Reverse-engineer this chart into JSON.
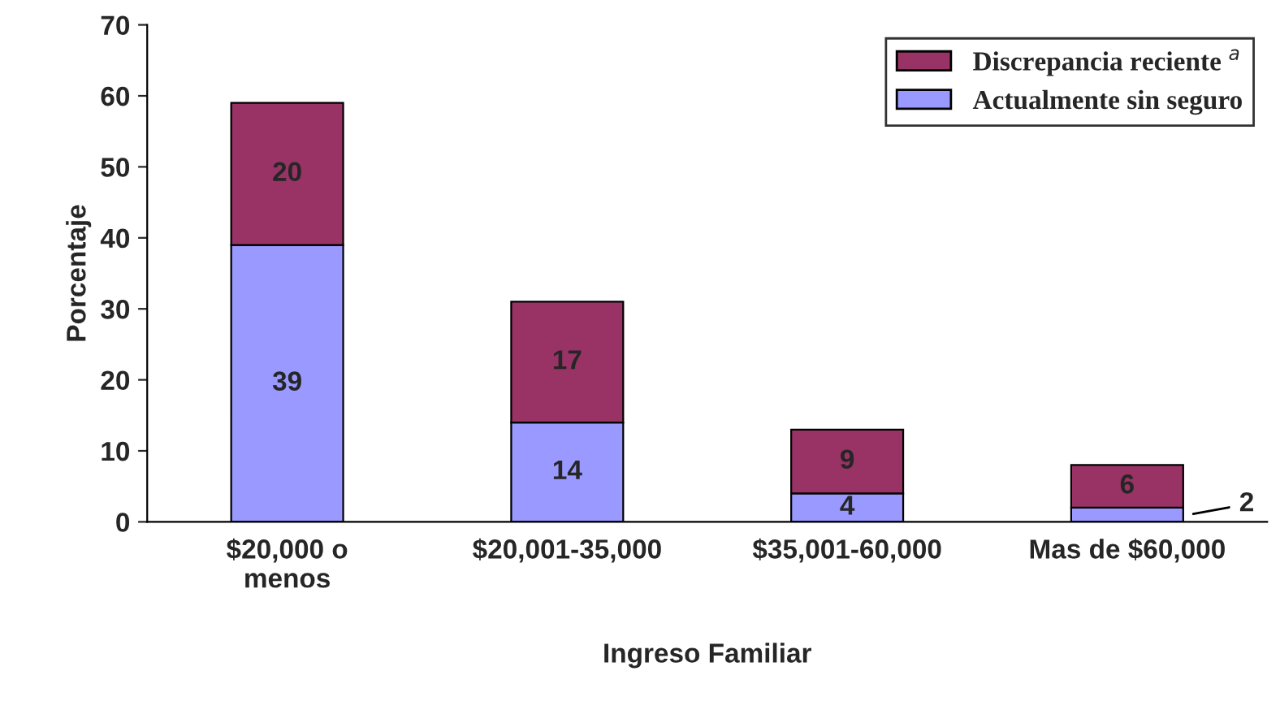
{
  "chart_data": {
    "type": "bar",
    "stacked": true,
    "xlabel": "Ingreso Familiar",
    "ylabel": "Porcentaje",
    "categories": [
      "$20,000 o\nmenos",
      "$20,001-35,000",
      "$35,001-60,000",
      "Mas de $60,000"
    ],
    "series": [
      {
        "name": "Actualmente sin seguro",
        "color": "#9999ff",
        "values": [
          39,
          14,
          4,
          2
        ]
      },
      {
        "name": "Discrepancia reciente $^{a}$",
        "color": "#993366",
        "values": [
          20,
          17,
          9,
          6
        ]
      }
    ],
    "ylim": [
      0,
      70
    ],
    "yticks": [
      0,
      10,
      20,
      30,
      40,
      50,
      60,
      70
    ],
    "data_labels": true,
    "legend": "top right",
    "grid": false
  }
}
